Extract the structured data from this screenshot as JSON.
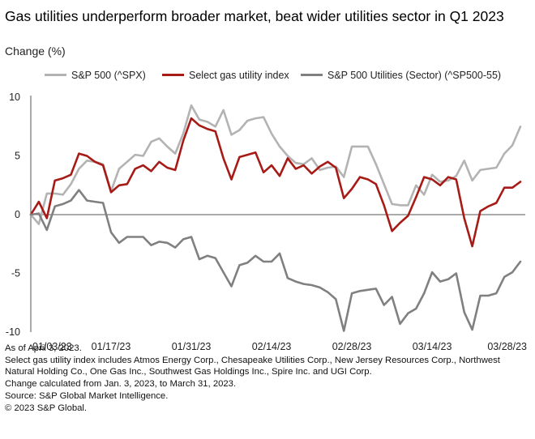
{
  "title": "Gas utilities underperform broader market, beat wider utilities sector in Q1 2023",
  "subtitle": "Change (%)",
  "colors": {
    "sp500": "#b3b3b3",
    "gas": "#a71b17",
    "utilities": "#808080",
    "axis": "#555555"
  },
  "notes": [
    "As of April 3, 2023.",
    "Select gas utility index includes Atmos Energy Corp., Chesapeake Utilities Corp., New Jersey Resources Corp., Northwest",
    "Natural Holding Co., One Gas Inc., Southwest Gas Holdings Inc., Spire Inc. and UGI Corp.",
    "Change calculated from Jan. 3, 2023, to March 31, 2023.",
    "Source: S&P Global Market Intelligence.",
    "© 2023 S&P Global."
  ],
  "chart_data": {
    "type": "line",
    "title": "Gas utilities underperform broader market, beat wider utilities sector in Q1 2023",
    "ylabel": "Change (%)",
    "xlabel": "",
    "ylim": [
      -10,
      10
    ],
    "yticks": [
      10,
      5,
      0,
      -5,
      -10
    ],
    "x_count": 62,
    "x_ticks": [
      {
        "index": 0,
        "label": "01/03/23"
      },
      {
        "index": 10,
        "label": "01/17/23"
      },
      {
        "index": 20,
        "label": "01/31/23"
      },
      {
        "index": 30,
        "label": "02/14/23"
      },
      {
        "index": 40,
        "label": "02/28/23"
      },
      {
        "index": 50,
        "label": "03/14/23"
      },
      {
        "index": 60,
        "label": "03/28/23"
      }
    ],
    "legend_position": "top",
    "series": [
      {
        "name": "S&P 500 (^SPX)",
        "color_key": "sp500",
        "values": [
          0,
          -0.8,
          1.8,
          1.8,
          1.7,
          2.6,
          3.9,
          4.6,
          4.5,
          4.3,
          2.0,
          3.9,
          4.5,
          5.1,
          5.0,
          6.2,
          6.5,
          5.8,
          5.2,
          6.9,
          9.3,
          8.1,
          7.9,
          7.5,
          8.9,
          6.8,
          7.2,
          8.0,
          8.2,
          8.3,
          6.9,
          5.8,
          5.0,
          4.4,
          4.3,
          4.8,
          3.8,
          4.0,
          4.1,
          3.2,
          5.8,
          5.8,
          5.8,
          4.3,
          2.6,
          0.9,
          0.8,
          0.8,
          2.5,
          1.7,
          3.4,
          2.8,
          2.9,
          3.3,
          4.6,
          2.9,
          3.8,
          3.9,
          4.0,
          5.2,
          5.9,
          7.5
        ]
      },
      {
        "name": "Select gas utility index",
        "color_key": "gas",
        "values": [
          0,
          1.1,
          -0.3,
          2.9,
          3.1,
          3.4,
          5.2,
          5.0,
          4.5,
          4.2,
          1.9,
          2.5,
          2.6,
          3.9,
          4.2,
          3.7,
          4.5,
          4.0,
          3.8,
          6.3,
          8.2,
          7.6,
          7.3,
          7.1,
          4.8,
          3.0,
          4.9,
          5.1,
          5.3,
          3.6,
          4.2,
          3.3,
          4.8,
          3.9,
          4.2,
          3.5,
          4.1,
          4.5,
          4.0,
          1.4,
          2.2,
          3.2,
          3.0,
          2.6,
          0.8,
          -1.4,
          -0.7,
          -0.1,
          1.5,
          3.2,
          3.0,
          2.5,
          3.2,
          3.0,
          -0.3,
          -2.7,
          0.3,
          0.7,
          1.0,
          2.3,
          2.3,
          2.8
        ]
      },
      {
        "name": "S&P 500 Utilities (Sector) (^SP500-55)",
        "color_key": "utilities",
        "values": [
          0,
          0.1,
          -1.3,
          0.7,
          0.9,
          1.2,
          2.1,
          1.2,
          1.1,
          1.0,
          -1.5,
          -2.4,
          -1.9,
          -1.9,
          -1.9,
          -2.6,
          -2.3,
          -2.4,
          -2.8,
          -2.1,
          -1.9,
          -3.8,
          -3.5,
          -3.7,
          -4.9,
          -6.1,
          -4.3,
          -4.1,
          -3.5,
          -4.0,
          -4.0,
          -3.3,
          -5.4,
          -5.7,
          -5.9,
          -6.0,
          -6.2,
          -6.6,
          -7.2,
          -9.9,
          -6.7,
          -6.5,
          -6.4,
          -6.3,
          -7.7,
          -7.0,
          -9.3,
          -8.4,
          -8.0,
          -6.7,
          -4.9,
          -5.7,
          -5.5,
          -5.0,
          -8.3,
          -9.8,
          -6.9,
          -6.9,
          -6.7,
          -5.3,
          -4.9,
          -4.0
        ]
      }
    ]
  }
}
